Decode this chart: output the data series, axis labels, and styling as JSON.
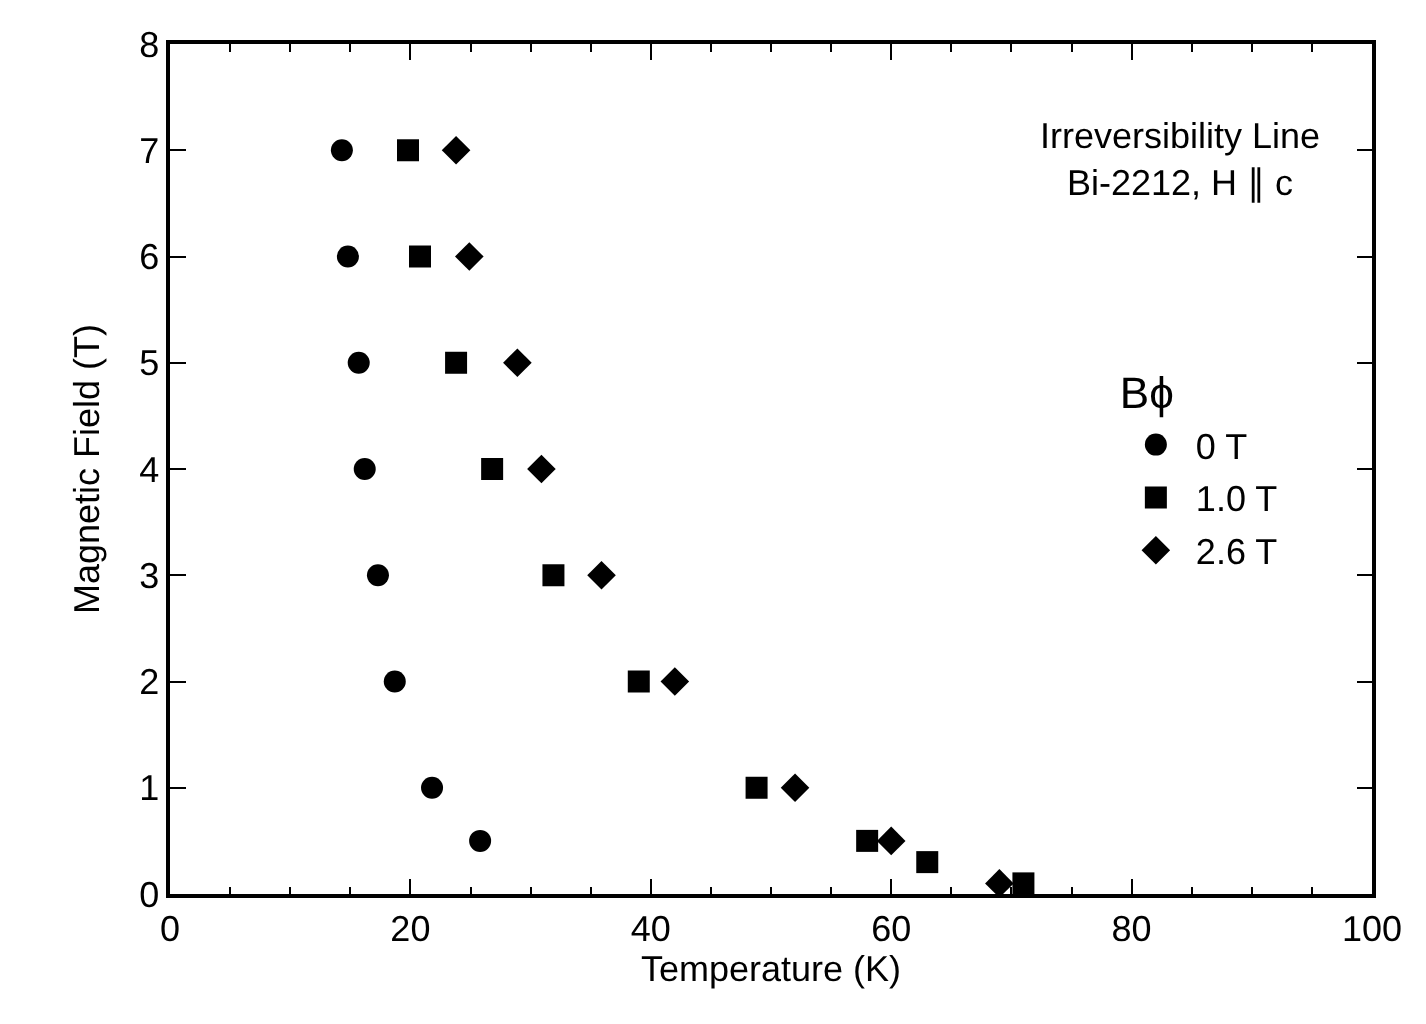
{
  "chart_data": {
    "type": "scatter",
    "xlabel": "Temperature (K)",
    "ylabel": "Magnetic Field (T)",
    "annotations": [
      "Irreversibility Line\nBi-2212, H ∥ c"
    ],
    "legend_title": "Bϕ",
    "legend": "right",
    "xlim": [
      0,
      100
    ],
    "ylim": [
      0,
      8
    ],
    "xticks": [
      0,
      {
        "value": 5,
        "label": null
      },
      {
        "value": 10,
        "label": null
      },
      {
        "value": 15,
        "label": null
      },
      20,
      {
        "value": 25,
        "label": null
      },
      {
        "value": 30,
        "label": null
      },
      {
        "value": 35,
        "label": null
      },
      40,
      {
        "value": 45,
        "label": null
      },
      {
        "value": 50,
        "label": null
      },
      {
        "value": 55,
        "label": null
      },
      60,
      {
        "value": 65,
        "label": null
      },
      {
        "value": 70,
        "label": null
      },
      {
        "value": 75,
        "label": null
      },
      80,
      {
        "value": 85,
        "label": null
      },
      {
        "value": 90,
        "label": null
      },
      {
        "value": 95,
        "label": null
      },
      100
    ],
    "yticks": [
      0,
      1,
      2,
      3,
      4,
      5,
      6,
      7,
      8
    ],
    "series": [
      {
        "name": "0 T",
        "color": "#000000",
        "marker": "circle",
        "x": [
          14.3,
          14.8,
          15.7,
          16.2,
          17.3,
          18.7,
          21.8,
          25.8
        ],
        "values": [
          7,
          6,
          5,
          4,
          3,
          2,
          1,
          0.5
        ]
      },
      {
        "name": "1.0 T",
        "color": "#000000",
        "marker": "square",
        "x": [
          19.8,
          20.8,
          23.8,
          26.8,
          31.9,
          39.0,
          48.8,
          58.0,
          63.0,
          71.0
        ],
        "values": [
          7,
          6,
          5,
          4,
          3,
          2,
          1,
          0.5,
          0.3,
          0.1
        ]
      },
      {
        "name": "2.6 T",
        "color": "#000000",
        "marker": "diamond",
        "x": [
          23.8,
          24.9,
          28.9,
          30.9,
          35.9,
          42.0,
          52.0,
          60.0,
          69.0
        ],
        "values": [
          7,
          6,
          5,
          4,
          3,
          2,
          1,
          0.5,
          0.1
        ]
      }
    ]
  }
}
